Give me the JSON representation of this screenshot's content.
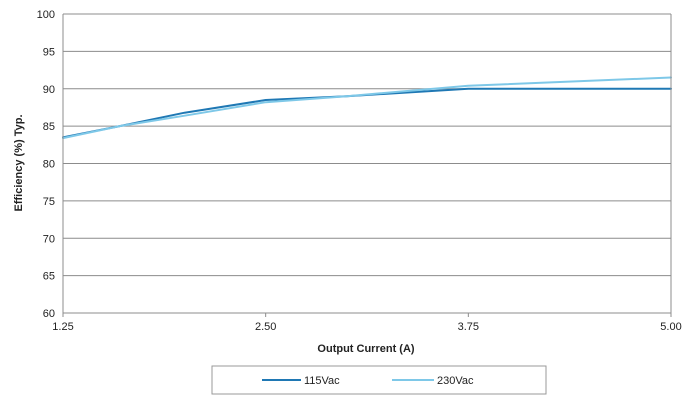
{
  "chart_data": {
    "type": "line",
    "title": "",
    "xlabel": "Output Current (A)",
    "ylabel": "Efficiency (%) Typ.",
    "xlim": [
      1.25,
      5.0
    ],
    "ylim": [
      60,
      100
    ],
    "x_ticks": [
      "1.25",
      "2.50",
      "3.75",
      "5.00"
    ],
    "y_ticks": [
      "100",
      "95",
      "90",
      "85",
      "80",
      "75",
      "70",
      "65",
      "60"
    ],
    "grid": "horizontal",
    "legend_position": "bottom",
    "series": [
      {
        "name": "115Vac",
        "color": "#1f78b4",
        "x": [
          1.25,
          1.6,
          2.0,
          2.5,
          3.0,
          3.75,
          5.0
        ],
        "y": [
          83.5,
          85.0,
          86.8,
          88.5,
          89.0,
          90.0,
          90.0
        ]
      },
      {
        "name": "230Vac",
        "color": "#7ec8e8",
        "x": [
          1.25,
          1.6,
          2.0,
          2.5,
          3.0,
          3.75,
          5.0
        ],
        "y": [
          83.4,
          85.0,
          86.4,
          88.2,
          89.0,
          90.4,
          91.5
        ]
      }
    ]
  }
}
